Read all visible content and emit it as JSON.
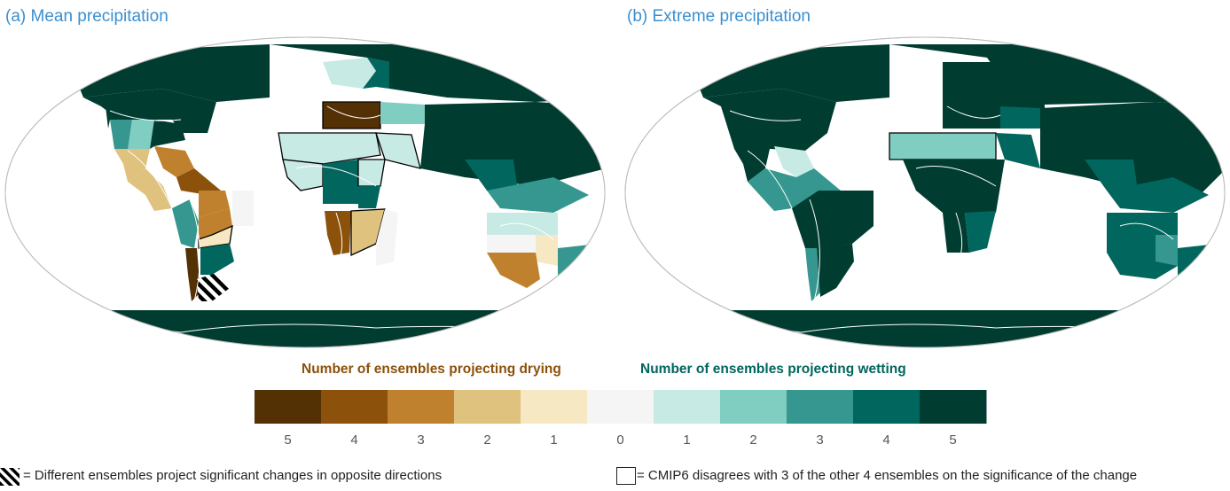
{
  "panels": [
    {
      "title": "(a) Mean precipitation"
    },
    {
      "title": "(b) Extreme precipitation"
    }
  ],
  "legend": {
    "drying_label": "Number of ensembles projecting drying",
    "wetting_label": "Number of ensembles projecting wetting",
    "categories": [
      {
        "label": "5",
        "color": "#543005"
      },
      {
        "label": "4",
        "color": "#8c510a"
      },
      {
        "label": "3",
        "color": "#bf812d"
      },
      {
        "label": "2",
        "color": "#dfc27d"
      },
      {
        "label": "1",
        "color": "#f6e8c3"
      },
      {
        "label": "0",
        "color": "#f5f5f5"
      },
      {
        "label": "1",
        "color": "#c7eae5"
      },
      {
        "label": "2",
        "color": "#80cdc1"
      },
      {
        "label": "3",
        "color": "#35978f"
      },
      {
        "label": "4",
        "color": "#01665e"
      },
      {
        "label": "5",
        "color": "#003c30"
      }
    ],
    "hatch_note": "= Different ensembles project significant changes in opposite directions",
    "box_note": "= CMIP6 disagrees with 3 of the other 4 ensembles on the significance of the change"
  },
  "colors": {
    "title": "#3b8fd0",
    "drying": "#8c510a",
    "wetting": "#01665e",
    "ocean_outline": "#bdbdbd",
    "coastline": "#ffffff"
  }
}
